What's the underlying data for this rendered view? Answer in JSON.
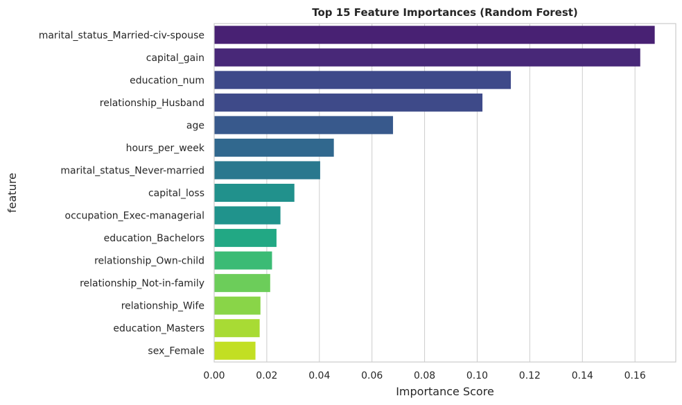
{
  "chart_data": {
    "type": "bar",
    "orientation": "horizontal",
    "title": "Top 15 Feature Importances (Random Forest)",
    "xlabel": "Importance Score",
    "ylabel": "feature",
    "xlim": [
      0,
      0.1755
    ],
    "xticks": [
      0.0,
      0.02,
      0.04,
      0.06,
      0.08,
      0.1,
      0.12,
      0.14,
      0.16
    ],
    "xtick_labels": [
      "0.00",
      "0.02",
      "0.04",
      "0.06",
      "0.08",
      "0.10",
      "0.12",
      "0.14",
      "0.16"
    ],
    "grid": true,
    "categories": [
      "marital_status_Married-civ-spouse",
      "capital_gain",
      "education_num",
      "relationship_Husband",
      "age",
      "hours_per_week",
      "marital_status_Never-married",
      "capital_loss",
      "occupation_Exec-managerial",
      "education_Bachelors",
      "relationship_Own-child",
      "relationship_Not-in-family",
      "relationship_Wife",
      "education_Masters",
      "sex_Female"
    ],
    "values": [
      0.1675,
      0.162,
      0.1128,
      0.102,
      0.068,
      0.0455,
      0.0403,
      0.0305,
      0.0252,
      0.0237,
      0.022,
      0.0213,
      0.0176,
      0.0173,
      0.0157
    ],
    "colors": [
      "#482173",
      "#482878",
      "#3e4989",
      "#3e4a89",
      "#38598c",
      "#31688e",
      "#2a788e",
      "#21918c",
      "#20938c",
      "#22a884",
      "#3bbb75",
      "#6ccd5a",
      "#89d548",
      "#a8db34",
      "#c2df23"
    ]
  }
}
